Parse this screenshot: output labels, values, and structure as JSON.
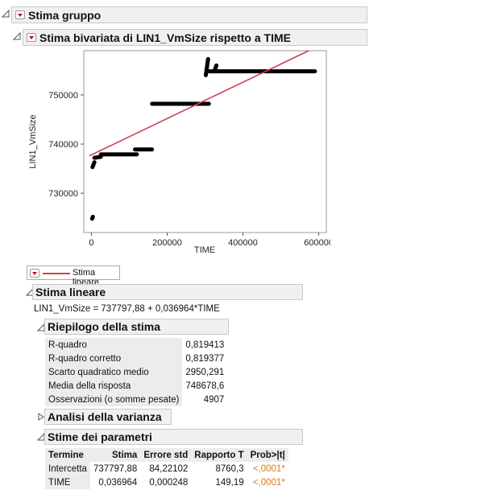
{
  "header": {
    "title": "Stima gruppo"
  },
  "bivariate": {
    "title": "Stima bivariata di LIN1_VmSize rispetto a TIME"
  },
  "chart_data": {
    "type": "scatter",
    "xlabel": "TIME",
    "ylabel": "LIN1_VmSize",
    "xlim": [
      -20000,
      620000
    ],
    "ylim": [
      722000,
      759000
    ],
    "x_ticks": [
      0,
      200000,
      400000,
      600000
    ],
    "x_tick_labels": [
      "0",
      "200000",
      "400000",
      "600000"
    ],
    "y_ticks": [
      730000,
      740000,
      750000
    ],
    "y_tick_labels": [
      "730000",
      "740000",
      "750000"
    ],
    "series": [
      {
        "segments": [
          {
            "x": [
              2000,
              4000
            ],
            "y": [
              724800,
              725200
            ]
          },
          {
            "x": [
              3000,
              8000
            ],
            "y": [
              735300,
              736300
            ]
          },
          {
            "x": [
              8000,
              25000
            ],
            "y": [
              737200,
              737400
            ]
          },
          {
            "x": [
              25000,
              120000
            ],
            "y": [
              737900,
              737900
            ]
          },
          {
            "x": [
              115000,
              160000
            ],
            "y": [
              738900,
              738900
            ]
          },
          {
            "x": [
              160000,
              310000
            ],
            "y": [
              748200,
              748200
            ]
          },
          {
            "x": [
              302000,
              308000
            ],
            "y": [
              754000,
              757300
            ]
          },
          {
            "x": [
              310000,
              590000
            ],
            "y": [
              754800,
              754800
            ]
          },
          {
            "x": [
              325000,
              330000
            ],
            "y": [
              754900,
              756000
            ]
          }
        ]
      }
    ],
    "fit_line": {
      "intercept": 737797.88,
      "slope": 0.036964,
      "color": "#cf4250"
    }
  },
  "legend": {
    "label": "Stima lineare",
    "line_color": "#cf4250"
  },
  "fit": {
    "title": "Stima lineare",
    "equation": "LIN1_VmSize = 737797,88 + 0,036964*TIME",
    "summary_title": "Riepilogo della stima",
    "summary_rows": [
      {
        "label": "R-quadro",
        "value": "0,819413"
      },
      {
        "label": "R-quadro corretto",
        "value": "0,819377"
      },
      {
        "label": "Scarto quadratico medio",
        "value": "2950,291"
      },
      {
        "label": "Media della risposta",
        "value": "748678,6"
      },
      {
        "label": "Osservazioni (o somme pesate)",
        "value": "4907"
      }
    ],
    "anova_title": "Analisi della varianza",
    "params_title": "Stime dei parametri",
    "params_headers": [
      "Termine",
      "Stima",
      "Errore std",
      "Rapporto T",
      "Prob>|t|"
    ],
    "params_rows": [
      {
        "term": "Intercetta",
        "estimate": "737797,88",
        "std_err": "84,22102",
        "t_ratio": "8760,3",
        "prob": "<,0001*"
      },
      {
        "term": "TIME",
        "estimate": "0,036964",
        "std_err": "0,000248",
        "t_ratio": "149,19",
        "prob": "<,0001*"
      }
    ]
  }
}
